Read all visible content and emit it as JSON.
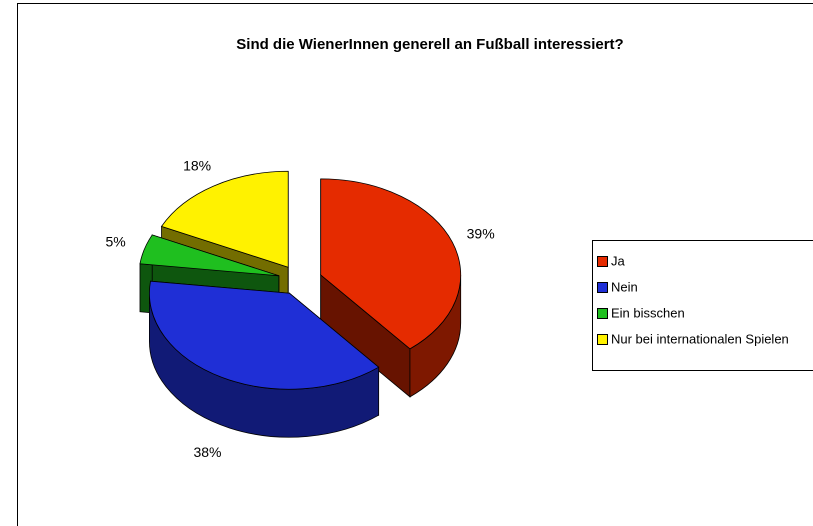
{
  "chart_data": {
    "type": "pie",
    "title": "Sind die WienerInnen generell an Fußball interessiert?",
    "categories": [
      "Ja",
      "Nein",
      "Ein bisschen",
      "Nur bei internationalen Spielen"
    ],
    "values": [
      39,
      38,
      5,
      18
    ],
    "value_labels": [
      "39%",
      "38%",
      "5%",
      "18%"
    ],
    "colors": [
      "#e52b00",
      "#1f2fd6",
      "#1fbf1f",
      "#fff200"
    ],
    "legend": "right"
  }
}
